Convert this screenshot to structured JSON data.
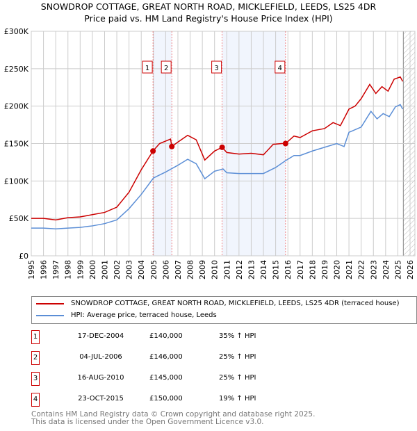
{
  "chart_data": {
    "type": "line",
    "title": "SNOWDROP COTTAGE, GREAT NORTH ROAD, MICKLEFIELD, LEEDS, LS25 4DR",
    "subtitle": "Price paid vs. HM Land Registry's House Price Index (HPI)",
    "xlim": [
      1995,
      2026
    ],
    "ylim": [
      0,
      300000
    ],
    "y_ticks": [
      {
        "v": 0,
        "label": "£0"
      },
      {
        "v": 50000,
        "label": "£50K"
      },
      {
        "v": 100000,
        "label": "£100K"
      },
      {
        "v": 150000,
        "label": "£150K"
      },
      {
        "v": 200000,
        "label": "£200K"
      },
      {
        "v": 250000,
        "label": "£250K"
      },
      {
        "v": 300000,
        "label": "£300K"
      }
    ],
    "x_ticks": [
      1995,
      1996,
      1997,
      1998,
      1999,
      2000,
      2001,
      2002,
      2003,
      2004,
      2005,
      2006,
      2007,
      2008,
      2009,
      2010,
      2011,
      2012,
      2013,
      2014,
      2015,
      2016,
      2017,
      2018,
      2019,
      2020,
      2021,
      2022,
      2023,
      2024,
      2025,
      2026
    ],
    "grid": true,
    "series": [
      {
        "name": "SNOWDROP COTTAGE, GREAT NORTH ROAD, MICKLEFIELD, LEEDS, LS25 4DR (terraced house)",
        "color": "#cc0000",
        "x": [
          1995,
          1996,
          1997,
          1998,
          1999,
          2000,
          2001,
          2002,
          2003,
          2004,
          2004.96,
          2005.5,
          2006.4,
          2006.5,
          2007,
          2007.8,
          2008.5,
          2009.2,
          2010,
          2010.62,
          2011,
          2012,
          2013,
          2014,
          2014.8,
          2015.5,
          2015.81,
          2016.5,
          2017,
          2018,
          2019,
          2019.7,
          2020.3,
          2021,
          2021.5,
          2022,
          2022.7,
          2023.2,
          2023.7,
          2024.2,
          2024.7,
          2025.2,
          2025.4
        ],
        "y": [
          50000,
          50000,
          48000,
          51000,
          52000,
          55000,
          58000,
          65000,
          85000,
          115000,
          140000,
          150000,
          156000,
          146000,
          152000,
          161000,
          155000,
          128000,
          140000,
          145000,
          138000,
          136000,
          137000,
          135000,
          149000,
          150000,
          150000,
          160000,
          158000,
          167000,
          170000,
          178000,
          174000,
          196000,
          200000,
          210000,
          229000,
          217000,
          226000,
          220000,
          236000,
          239000,
          233000
        ]
      },
      {
        "name": "HPI: Average price, terraced house, Leeds",
        "color": "#5b8ed6",
        "x": [
          1995,
          1996,
          1997,
          1998,
          1999,
          2000,
          2001,
          2002,
          2003,
          2004,
          2005,
          2006,
          2007,
          2007.8,
          2008.5,
          2009.2,
          2010,
          2010.7,
          2011,
          2012,
          2013,
          2014,
          2015,
          2015.8,
          2016.5,
          2017,
          2018,
          2019,
          2020,
          2020.6,
          2021,
          2022,
          2022.8,
          2023.3,
          2023.8,
          2024.3,
          2024.8,
          2025.2,
          2025.4
        ],
        "y": [
          37000,
          37000,
          36000,
          37000,
          38000,
          40000,
          43000,
          48000,
          63000,
          82000,
          104000,
          112000,
          121000,
          129000,
          123000,
          103000,
          113000,
          116000,
          111000,
          110000,
          110000,
          110000,
          118000,
          127000,
          134000,
          134000,
          140000,
          145000,
          150000,
          146000,
          165000,
          172000,
          193000,
          183000,
          190000,
          186000,
          199000,
          202000,
          196000
        ]
      }
    ],
    "sales": [
      {
        "n": "1",
        "date": "17-DEC-2004",
        "x": 2004.96,
        "price": 140000,
        "price_label": "£140,000",
        "hpi": "35% ↑ HPI"
      },
      {
        "n": "2",
        "date": "04-JUL-2006",
        "x": 2006.5,
        "price": 146000,
        "price_label": "£146,000",
        "hpi": "25% ↑ HPI"
      },
      {
        "n": "3",
        "date": "16-AUG-2010",
        "x": 2010.62,
        "price": 145000,
        "price_label": "£145,000",
        "hpi": "25% ↑ HPI"
      },
      {
        "n": "4",
        "date": "23-OCT-2015",
        "x": 2015.81,
        "price": 150000,
        "price_label": "£150,000",
        "hpi": "19% ↑ HPI"
      }
    ],
    "shaded_ranges": [
      [
        2004.96,
        2006.5
      ],
      [
        2010.62,
        2015.81
      ]
    ],
    "forecast_start": 2025.45
  },
  "footer": [
    "Contains HM Land Registry data © Crown copyright and database right 2025.",
    "This data is licensed under the Open Government Licence v3.0."
  ]
}
